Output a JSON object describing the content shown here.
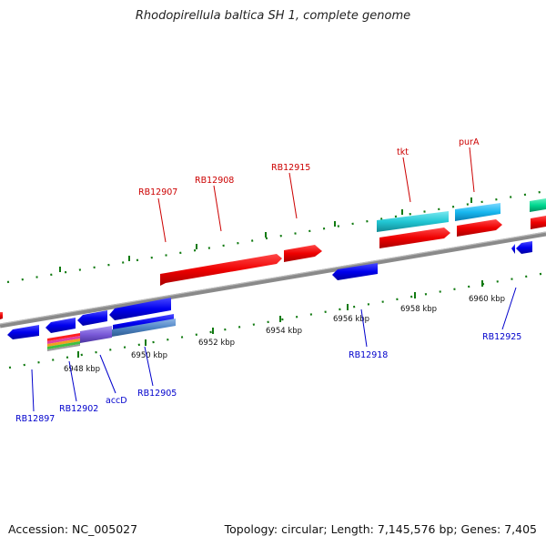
{
  "title": "Rhodopirellula baltica SH 1, complete genome",
  "footer": {
    "accession": "Accession: NC_005027",
    "topology": "Topology: circular; Length: 7,145,576 bp; Genes: 7,405"
  },
  "tick_labels": [
    "6948 kbp",
    "6950 kbp",
    "6952 kbp",
    "6954 kbp",
    "6956 kbp",
    "6958 kbp",
    "6960 kbp"
  ],
  "forward_genes": [
    "RB12907",
    "RB12908",
    "RB12915",
    "tkt",
    "purA"
  ],
  "reverse_genes": [
    "RB12897",
    "RB12902",
    "accD",
    "RB12905",
    "RB12918",
    "RB12925"
  ],
  "colors": {
    "forward_label": "#cc0000",
    "reverse_label": "#0000cc",
    "forward_gene": "#ee0000",
    "reverse_gene": "#0000ee",
    "cds_cyan": "#22c7d4",
    "cds_sky": "#18b8f0",
    "cds_green": "#00d890",
    "cds_purple": "#7a5ad8",
    "cds_steel": "#4f86c6",
    "backbone": "#8a8a8a",
    "tick_green": "#107a10"
  }
}
